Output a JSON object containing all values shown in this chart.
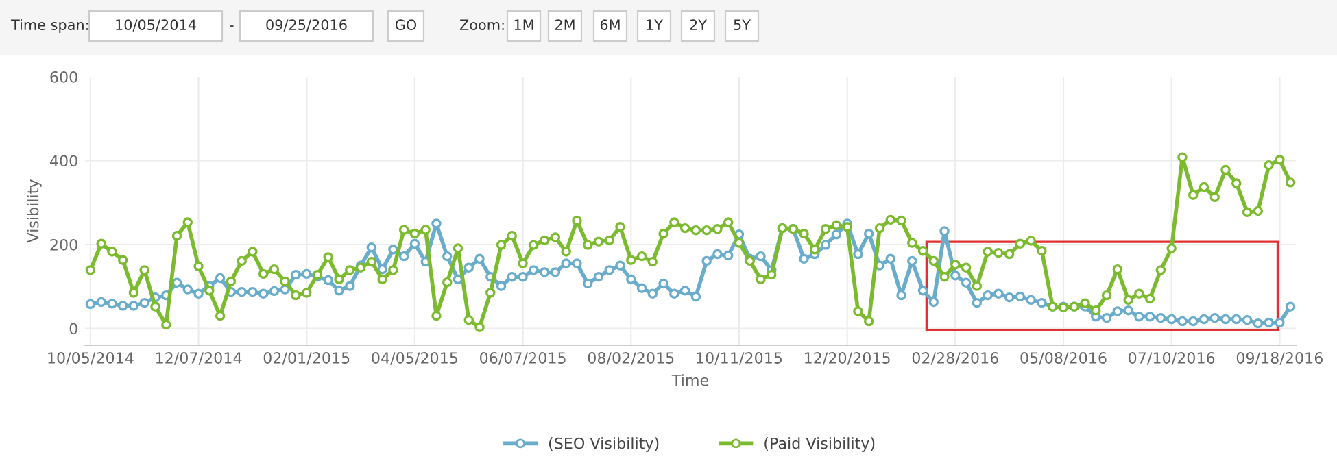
{
  "chart_data": {
    "type": "line",
    "xlabel": "Time",
    "ylabel": "Visibility",
    "categories": [
      "10/05/2014",
      null,
      null,
      null,
      null,
      null,
      null,
      null,
      null,
      null,
      "12/07/2014",
      null,
      null,
      null,
      null,
      null,
      null,
      null,
      null,
      null,
      "02/01/2015",
      null,
      null,
      null,
      null,
      null,
      null,
      null,
      null,
      null,
      "04/05/2015",
      null,
      null,
      null,
      null,
      null,
      null,
      null,
      null,
      null,
      "06/07/2015",
      null,
      null,
      null,
      null,
      null,
      null,
      null,
      null,
      null,
      "08/02/2015",
      null,
      null,
      null,
      null,
      null,
      null,
      null,
      null,
      null,
      "10/11/2015",
      null,
      null,
      null,
      null,
      null,
      null,
      null,
      null,
      null,
      "12/20/2015",
      null,
      null,
      null,
      null,
      null,
      null,
      null,
      null,
      null,
      "02/28/2016",
      null,
      null,
      null,
      null,
      null,
      null,
      null,
      null,
      null,
      "05/08/2016",
      null,
      null,
      null,
      null,
      null,
      null,
      null,
      null,
      null,
      "07/10/2016",
      null,
      null,
      null,
      null,
      null,
      null,
      null,
      null,
      null,
      "09/18/2016",
      null
    ],
    "series": [
      {
        "name": "(SEO Visibility)",
        "color": "#6aaccc",
        "values": [
          58,
          63,
          59,
          54,
          54,
          61,
          74,
          79,
          109,
          93,
          83,
          101,
          120,
          87,
          87,
          87,
          83,
          89,
          93,
          128,
          130,
          123,
          115,
          90,
          101,
          150,
          193,
          141,
          188,
          172,
          202,
          159,
          250,
          172,
          117,
          145,
          166,
          123,
          101,
          123,
          123,
          139,
          134,
          134,
          155,
          155,
          107,
          123,
          139,
          150,
          117,
          96,
          83,
          107,
          83,
          90,
          76,
          161,
          177,
          174,
          224,
          166,
          172,
          139,
          239,
          237,
          166,
          177,
          199,
          224,
          250,
          177,
          226,
          150,
          166,
          79,
          161,
          90,
          63,
          232,
          126,
          109,
          61,
          79,
          83,
          74,
          76,
          68,
          61,
          52,
          52,
          52,
          52,
          28,
          25,
          41,
          43,
          28,
          28,
          25,
          22,
          17,
          17,
          22,
          25,
          22,
          22,
          20,
          12,
          14,
          14,
          52
        ]
      },
      {
        "name": "(Paid Visibility)",
        "color": "#7cbb2f",
        "values": [
          139,
          202,
          183,
          163,
          85,
          139,
          52,
          9,
          221,
          253,
          148,
          90,
          30,
          112,
          161,
          183,
          130,
          141,
          112,
          79,
          85,
          128,
          170,
          117,
          139,
          145,
          159,
          117,
          139,
          235,
          226,
          235,
          30,
          110,
          191,
          20,
          3,
          85,
          199,
          221,
          155,
          199,
          210,
          217,
          183,
          257,
          199,
          207,
          210,
          242,
          163,
          172,
          159,
          226,
          253,
          239,
          234,
          234,
          237,
          253,
          204,
          161,
          117,
          128,
          239,
          237,
          226,
          188,
          237,
          246,
          242,
          41,
          17,
          239,
          259,
          257,
          204,
          185,
          161,
          123,
          152,
          145,
          101,
          183,
          180,
          177,
          202,
          209,
          185,
          52,
          50,
          52,
          60,
          43,
          79,
          141,
          68,
          83,
          71,
          139,
          191,
          408,
          318,
          337,
          313,
          378,
          346,
          277,
          280,
          389,
          402,
          348
        ]
      }
    ],
    "ylim": [
      -40,
      600
    ],
    "yticks": [
      0,
      200,
      400,
      600
    ],
    "grid": true,
    "legend": "bottom",
    "marker": "circle",
    "line_style": "solid",
    "annotations": [
      "Time span:",
      "10/05/2014",
      "-",
      "09/25/2016",
      "GO",
      "Zoom:",
      "1M",
      "2M",
      "6M",
      "1Y",
      "2Y",
      "5Y"
    ]
  }
}
